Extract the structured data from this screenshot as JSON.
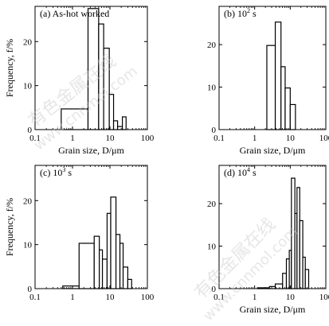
{
  "watermark": {
    "lines": [
      "有色金属在线",
      "www.cnnmol.com"
    ]
  },
  "chart_data": [
    {
      "type": "bar",
      "title": "(a) As-hot worked",
      "title_superscript": "",
      "title_suffix": "",
      "xlabel": "Grain size, D/μm",
      "ylabel": "Frequency, f/%",
      "x_scale": "log",
      "xlim": [
        0.1,
        100
      ],
      "ylim": [
        0,
        28
      ],
      "yticks": [
        0,
        10,
        20
      ],
      "xticks": [
        0.1,
        1,
        10,
        100
      ],
      "xtick_labels": [
        "0.1",
        "1",
        "10",
        "100"
      ],
      "bins": [
        {
          "x0": 0.5,
          "x1": 2.6,
          "value": 4.7
        },
        {
          "x0": 2.6,
          "x1": 5.0,
          "value": 27.5
        },
        {
          "x0": 5.0,
          "x1": 6.8,
          "value": 24.0
        },
        {
          "x0": 6.8,
          "x1": 9.6,
          "value": 18.5
        },
        {
          "x0": 9.6,
          "x1": 12.5,
          "value": 8.0
        },
        {
          "x0": 12.5,
          "x1": 16.0,
          "value": 2.0
        },
        {
          "x0": 16.0,
          "x1": 21.5,
          "value": 0.7
        },
        {
          "x0": 21.5,
          "x1": 27.0,
          "value": 2.9
        }
      ]
    },
    {
      "type": "bar",
      "title": "(b) 10",
      "title_superscript": "2",
      "title_suffix": " s",
      "xlabel": "Grain size, D/μm",
      "ylabel": "",
      "x_scale": "log",
      "xlim": [
        0.1,
        100
      ],
      "ylim": [
        0,
        29
      ],
      "yticks": [
        0,
        10,
        20
      ],
      "xticks": [
        0.1,
        1,
        10,
        100
      ],
      "xtick_labels": [
        "0.1",
        "1",
        "10",
        "100"
      ],
      "bins": [
        {
          "x0": 2.2,
          "x1": 3.8,
          "value": 19.8
        },
        {
          "x0": 3.8,
          "x1": 5.5,
          "value": 25.3
        },
        {
          "x0": 5.5,
          "x1": 7.2,
          "value": 14.8
        },
        {
          "x0": 7.2,
          "x1": 10.0,
          "value": 9.8
        },
        {
          "x0": 10.0,
          "x1": 14.0,
          "value": 5.9
        }
      ]
    },
    {
      "type": "bar",
      "title": "(c) 10",
      "title_superscript": "3",
      "title_suffix": " s",
      "xlabel": "",
      "ylabel": "Frequency, f/%",
      "x_scale": "log",
      "xlim": [
        0.1,
        100
      ],
      "ylim": [
        0,
        28
      ],
      "yticks": [
        0,
        10,
        20
      ],
      "xticks": [
        0.1,
        1,
        10,
        100
      ],
      "xtick_labels": [
        "0.1",
        "1",
        "10",
        "100"
      ],
      "bins": [
        {
          "x0": 0.55,
          "x1": 1.5,
          "value": 0.6
        },
        {
          "x0": 1.5,
          "x1": 3.8,
          "value": 10.3
        },
        {
          "x0": 3.8,
          "x1": 5.2,
          "value": 11.9
        },
        {
          "x0": 5.2,
          "x1": 6.3,
          "value": 8.8
        },
        {
          "x0": 6.3,
          "x1": 8.4,
          "value": 6.7
        },
        {
          "x0": 8.4,
          "x1": 10.5,
          "value": 17.1
        },
        {
          "x0": 10.5,
          "x1": 14.5,
          "value": 20.8
        },
        {
          "x0": 14.5,
          "x1": 18.5,
          "value": 12.3
        },
        {
          "x0": 18.5,
          "x1": 22.5,
          "value": 10.3
        },
        {
          "x0": 22.5,
          "x1": 30.0,
          "value": 4.9
        },
        {
          "x0": 30.0,
          "x1": 38.0,
          "value": 2.1
        }
      ]
    },
    {
      "type": "bar",
      "title": "(d) 10",
      "title_superscript": "4",
      "title_suffix": " s",
      "xlabel": "Grain size, D/μm",
      "ylabel": "",
      "x_scale": "log",
      "xlim": [
        0.1,
        100
      ],
      "ylim": [
        0,
        29
      ],
      "yticks": [
        0,
        10,
        20
      ],
      "xticks": [
        0.1,
        1,
        10,
        100
      ],
      "xtick_labels": [
        "0.1",
        "1",
        "10",
        "100"
      ],
      "bins": [
        {
          "x0": 1.2,
          "x1": 2.6,
          "value": 0.2
        },
        {
          "x0": 2.6,
          "x1": 3.8,
          "value": 0.5
        },
        {
          "x0": 3.8,
          "x1": 6.1,
          "value": 1.1
        },
        {
          "x0": 6.1,
          "x1": 7.8,
          "value": 3.6
        },
        {
          "x0": 7.8,
          "x1": 9.4,
          "value": 7.0
        },
        {
          "x0": 9.4,
          "x1": 10.8,
          "value": 9.0
        },
        {
          "x0": 10.8,
          "x1": 13.5,
          "value": 26.0
        },
        {
          "x0": 13.5,
          "x1": 15.5,
          "value": 17.7
        },
        {
          "x0": 15.5,
          "x1": 18.5,
          "value": 23.8
        },
        {
          "x0": 18.5,
          "x1": 22.5,
          "value": 16.0
        },
        {
          "x0": 22.5,
          "x1": 26.5,
          "value": 7.4
        },
        {
          "x0": 26.5,
          "x1": 33.0,
          "value": 4.5
        }
      ]
    }
  ]
}
